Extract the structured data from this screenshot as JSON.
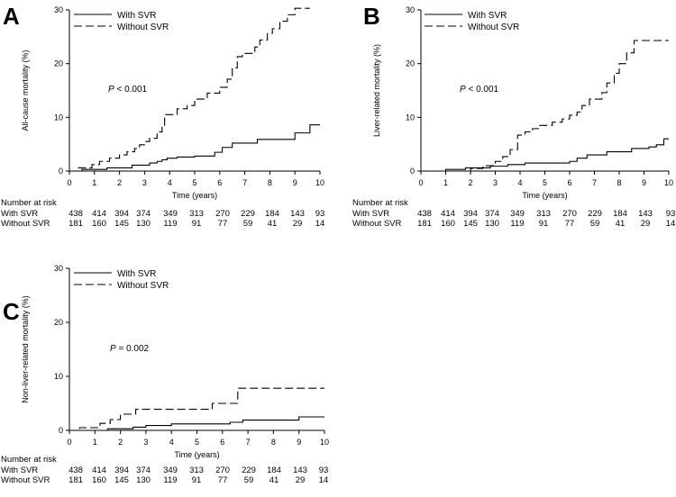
{
  "chart_data": [
    {
      "panel": "A",
      "type": "line",
      "step": true,
      "xlabel": "Time (years)",
      "ylabel": "All-cause mortality (%)",
      "xlim": [
        0,
        10
      ],
      "ylim": [
        0,
        30
      ],
      "xticks": [
        0,
        1,
        2,
        3,
        4,
        5,
        6,
        7,
        8,
        9,
        10
      ],
      "yticks": [
        0,
        10,
        20,
        30
      ],
      "pvalue": "P < 0.001",
      "legend": "top-left",
      "series": [
        {
          "name": "With SVR",
          "style": "solid",
          "x": [
            0,
            0.5,
            1.5,
            2.5,
            3.2,
            3.5,
            3.7,
            3.9,
            4.3,
            5.0,
            5.8,
            6.1,
            6.5,
            7.5,
            9.0,
            9.6,
            10.0
          ],
          "y": [
            0,
            0.3,
            0.6,
            1.1,
            1.5,
            1.8,
            2.1,
            2.4,
            2.6,
            2.8,
            3.5,
            4.4,
            5.2,
            5.9,
            7.1,
            8.6,
            8.6
          ]
        },
        {
          "name": "Without SVR",
          "style": "dashed",
          "x": [
            0,
            0.3,
            0.9,
            1.2,
            1.6,
            2.0,
            2.3,
            2.6,
            2.8,
            3.0,
            3.2,
            3.5,
            3.7,
            3.8,
            4.3,
            4.7,
            5.0,
            5.5,
            6.0,
            6.3,
            6.5,
            6.7,
            6.9,
            7.4,
            7.6,
            7.9,
            8.1,
            8.4,
            8.7,
            9.0,
            9.6
          ],
          "y": [
            0,
            0.6,
            1.2,
            1.8,
            2.4,
            3.0,
            3.6,
            4.2,
            4.9,
            5.5,
            6.1,
            7.3,
            8.4,
            10.5,
            11.6,
            12.2,
            13.4,
            14.5,
            15.6,
            17.1,
            19.2,
            21.3,
            21.9,
            23.1,
            24.4,
            25.6,
            26.5,
            27.9,
            29.1,
            30.3,
            30.3
          ]
        }
      ]
    },
    {
      "panel": "B",
      "type": "line",
      "step": true,
      "xlabel": "Time (years)",
      "ylabel": "Liver-related mortality (%)",
      "xlim": [
        0,
        10
      ],
      "ylim": [
        0,
        30
      ],
      "xticks": [
        0,
        1,
        2,
        3,
        4,
        5,
        6,
        7,
        8,
        9,
        10
      ],
      "yticks": [
        0,
        10,
        20,
        30
      ],
      "pvalue": "P < 0.001",
      "legend": "top-left",
      "series": [
        {
          "name": "With SVR",
          "style": "solid",
          "x": [
            0,
            1.0,
            1.8,
            2.8,
            3.5,
            4.2,
            6.0,
            6.3,
            6.7,
            7.5,
            8.5,
            9.2,
            9.5,
            9.8,
            10.0
          ],
          "y": [
            0,
            0.3,
            0.6,
            0.9,
            1.2,
            1.5,
            1.8,
            2.4,
            3.0,
            3.6,
            4.2,
            4.5,
            4.9,
            6.0,
            6.0
          ]
        },
        {
          "name": "Without SVR",
          "style": "dashed",
          "x": [
            0,
            2.0,
            2.5,
            3.0,
            3.3,
            3.6,
            3.9,
            4.2,
            4.5,
            4.8,
            5.3,
            5.7,
            6.0,
            6.3,
            6.5,
            6.8,
            7.3,
            7.5,
            7.8,
            8.0,
            8.3,
            8.6,
            8.9,
            9.2,
            10.0
          ],
          "y": [
            0,
            0.5,
            1.0,
            1.8,
            2.7,
            4.0,
            6.7,
            7.3,
            7.9,
            8.5,
            9.1,
            9.7,
            10.4,
            11.0,
            12.2,
            13.4,
            14.6,
            16.4,
            18.2,
            20.0,
            22.0,
            24.3,
            24.3,
            24.3,
            24.3
          ]
        }
      ]
    },
    {
      "panel": "C",
      "type": "line",
      "step": true,
      "xlabel": "Time (years)",
      "ylabel": "Non-liver-related mortality (%)",
      "xlim": [
        0,
        10
      ],
      "ylim": [
        0,
        30
      ],
      "xticks": [
        0,
        1,
        2,
        3,
        4,
        5,
        6,
        7,
        8,
        9,
        10
      ],
      "yticks": [
        0,
        10,
        20,
        30
      ],
      "pvalue": "P = 0.002",
      "legend": "top-left",
      "series": [
        {
          "name": "With SVR",
          "style": "solid",
          "x": [
            0,
            1.5,
            2.5,
            3.0,
            4.0,
            6.3,
            6.8,
            9.0,
            10.0
          ],
          "y": [
            0,
            0.3,
            0.6,
            0.9,
            1.2,
            1.5,
            1.9,
            2.5,
            2.5
          ]
        },
        {
          "name": "Without SVR",
          "style": "dashed",
          "x": [
            0,
            0.4,
            1.2,
            1.6,
            2.0,
            2.6,
            5.6,
            6.6,
            10.0
          ],
          "y": [
            0,
            0.5,
            1.3,
            2.0,
            3.0,
            3.9,
            5.0,
            7.8,
            7.8
          ]
        }
      ]
    }
  ],
  "risk_tables": [
    {
      "panel": "A",
      "heading": "Number at risk",
      "rows": [
        {
          "label": "With SVR",
          "values": [
            "438",
            "414",
            "394",
            "374",
            "349",
            "313",
            "270",
            "229",
            "184",
            "143",
            "93"
          ]
        },
        {
          "label": "Without SVR",
          "values": [
            "181",
            "160",
            "145",
            "130",
            "119",
            "91",
            "77",
            "59",
            "41",
            "29",
            "14"
          ]
        }
      ]
    },
    {
      "panel": "B",
      "heading": "Number at risk",
      "rows": [
        {
          "label": "With SVR",
          "values": [
            "438",
            "414",
            "394",
            "374",
            "349",
            "313",
            "270",
            "229",
            "184",
            "143",
            "93"
          ]
        },
        {
          "label": "Without SVR",
          "values": [
            "181",
            "160",
            "145",
            "130",
            "119",
            "91",
            "77",
            "59",
            "41",
            "29",
            "14"
          ]
        }
      ]
    },
    {
      "panel": "C",
      "heading": "Number at risk",
      "rows": [
        {
          "label": "With SVR",
          "values": [
            "438",
            "414",
            "394",
            "374",
            "349",
            "313",
            "270",
            "229",
            "184",
            "143",
            "93"
          ]
        },
        {
          "label": "Without SVR",
          "values": [
            "181",
            "160",
            "145",
            "130",
            "119",
            "91",
            "77",
            "59",
            "41",
            "29",
            "14"
          ]
        }
      ]
    }
  ]
}
